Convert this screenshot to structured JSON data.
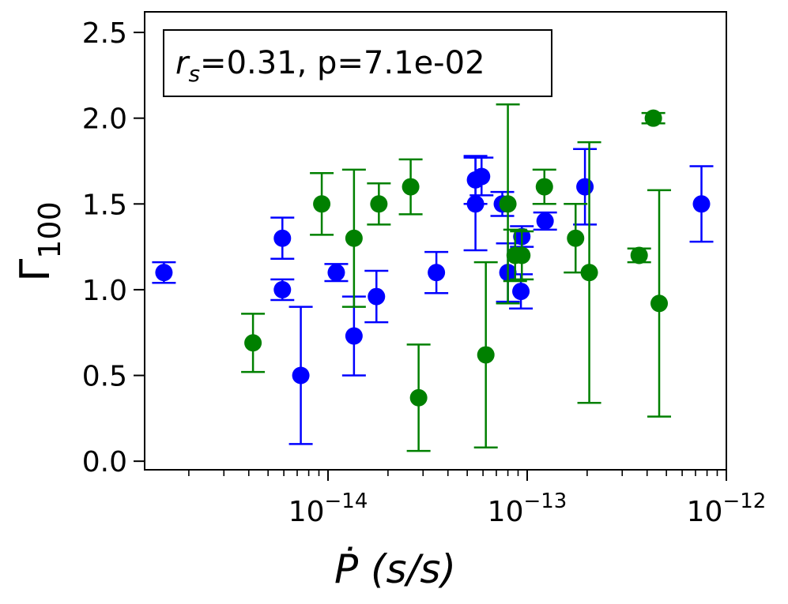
{
  "chart_data": {
    "type": "scatter",
    "x_scale": "log",
    "xlabel": "Ṗ (s/s)",
    "ylabel": "Γ100",
    "xlim": [
      1.2e-15,
      1e-12
    ],
    "ylim": [
      -0.05,
      2.62
    ],
    "yticks": [
      "0.0",
      "0.5",
      "1.0",
      "1.5",
      "2.0",
      "2.5"
    ],
    "xticks_major": [
      {
        "base": "10",
        "exp": "−14"
      },
      {
        "base": "10",
        "exp": "−13"
      },
      {
        "base": "10",
        "exp": "−12"
      }
    ],
    "annotation": {
      "var": "r",
      "sub": "s",
      "text": "=0.31, p=7.1e-02"
    },
    "series": [
      {
        "name": "blue",
        "color": "#0000ff",
        "points": [
          {
            "x": 1.5e-15,
            "y": 1.1,
            "lo": 1.04,
            "hi": 1.16
          },
          {
            "x": 5.9e-15,
            "y": 1.3,
            "lo": 1.18,
            "hi": 1.42
          },
          {
            "x": 5.9e-15,
            "y": 1.0,
            "lo": 0.94,
            "hi": 1.06
          },
          {
            "x": 7.3e-15,
            "y": 0.5,
            "lo": 0.1,
            "hi": 0.9
          },
          {
            "x": 1.1e-14,
            "y": 1.1,
            "lo": 1.05,
            "hi": 1.15
          },
          {
            "x": 1.35e-14,
            "y": 0.73,
            "lo": 0.5,
            "hi": 0.96
          },
          {
            "x": 1.75e-14,
            "y": 0.96,
            "lo": 0.81,
            "hi": 1.11
          },
          {
            "x": 3.5e-14,
            "y": 1.1,
            "lo": 0.98,
            "hi": 1.22
          },
          {
            "x": 5.5e-14,
            "y": 1.64,
            "lo": 1.5,
            "hi": 1.78
          },
          {
            "x": 5.5e-14,
            "y": 1.5,
            "lo": 1.23,
            "hi": 1.77
          },
          {
            "x": 5.9e-14,
            "y": 1.66,
            "lo": 1.55,
            "hi": 1.77
          },
          {
            "x": 7.5e-14,
            "y": 1.5,
            "lo": 1.43,
            "hi": 1.57
          },
          {
            "x": 8e-14,
            "y": 1.1,
            "lo": 0.93,
            "hi": 1.27
          },
          {
            "x": 9.3e-14,
            "y": 0.99,
            "lo": 0.89,
            "hi": 1.09
          },
          {
            "x": 9.4e-14,
            "y": 1.31,
            "lo": 1.25,
            "hi": 1.37
          },
          {
            "x": 1.23e-13,
            "y": 1.4,
            "lo": 1.35,
            "hi": 1.45
          },
          {
            "x": 1.95e-13,
            "y": 1.6,
            "lo": 1.38,
            "hi": 1.82
          },
          {
            "x": 7.5e-13,
            "y": 1.5,
            "lo": 1.28,
            "hi": 1.72
          }
        ]
      },
      {
        "name": "green",
        "color": "#008000",
        "points": [
          {
            "x": 4.2e-15,
            "y": 0.69,
            "lo": 0.52,
            "hi": 0.86
          },
          {
            "x": 9.3e-15,
            "y": 1.5,
            "lo": 1.32,
            "hi": 1.68
          },
          {
            "x": 1.35e-14,
            "y": 1.3,
            "lo": 0.9,
            "hi": 1.7
          },
          {
            "x": 1.8e-14,
            "y": 1.5,
            "lo": 1.38,
            "hi": 1.62
          },
          {
            "x": 2.6e-14,
            "y": 1.6,
            "lo": 1.44,
            "hi": 1.76
          },
          {
            "x": 2.85e-14,
            "y": 0.37,
            "lo": 0.06,
            "hi": 0.68
          },
          {
            "x": 6.2e-14,
            "y": 0.62,
            "lo": 0.08,
            "hi": 1.16
          },
          {
            "x": 8e-14,
            "y": 1.5,
            "lo": 0.92,
            "hi": 2.08
          },
          {
            "x": 8.7e-14,
            "y": 1.2,
            "lo": 1.05,
            "hi": 1.35
          },
          {
            "x": 9.4e-14,
            "y": 1.2,
            "lo": 1.06,
            "hi": 1.34
          },
          {
            "x": 1.22e-13,
            "y": 1.6,
            "lo": 1.5,
            "hi": 1.7
          },
          {
            "x": 1.75e-13,
            "y": 1.3,
            "lo": 1.1,
            "hi": 1.5
          },
          {
            "x": 2.05e-13,
            "y": 1.1,
            "lo": 0.34,
            "hi": 1.86
          },
          {
            "x": 3.65e-13,
            "y": 1.2,
            "lo": 1.16,
            "hi": 1.24
          },
          {
            "x": 4.3e-13,
            "y": 2.0,
            "lo": 1.97,
            "hi": 2.03
          },
          {
            "x": 4.6e-13,
            "y": 0.92,
            "lo": 0.26,
            "hi": 1.58
          }
        ]
      }
    ]
  }
}
